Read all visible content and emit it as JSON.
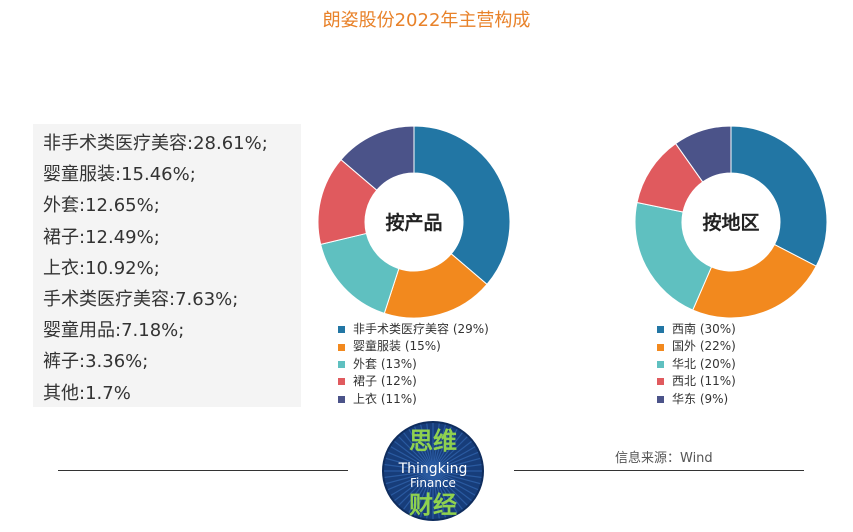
{
  "title": "朗姿股份2022年主营构成",
  "breakdown": [
    {
      "label": "非手术类医疗美容",
      "value": "28.61%;"
    },
    {
      "label": "婴童服装",
      "value": "15.46%;"
    },
    {
      "label": "外套",
      "value": "12.65%;"
    },
    {
      "label": "裙子",
      "value": "12.49%;"
    },
    {
      "label": "上衣",
      "value": "10.92%;"
    },
    {
      "label": "手术类医疗美容",
      "value": "7.63%;"
    },
    {
      "label": "婴童用品",
      "value": "7.18%;"
    },
    {
      "label": "裤子",
      "value": "3.36%;"
    },
    {
      "label": "其他",
      "value": "1.7%"
    }
  ],
  "chart_data": [
    {
      "type": "pie",
      "title": "按产品",
      "categories": [
        "非手术类医疗美容",
        "婴童服装",
        "外套",
        "裙子",
        "上衣"
      ],
      "values": [
        29,
        15,
        13,
        12,
        11
      ],
      "value_unit": "%",
      "colors": [
        "#2276a4",
        "#f2891e",
        "#5fc0c0",
        "#e05a5e",
        "#4b5389"
      ],
      "legend_labels": [
        "非手术类医疗美容 (29%)",
        "婴童服装 (15%)",
        "外套 (13%)",
        "裙子 (12%)",
        "上衣 (11%)"
      ],
      "legend_position": "bottom"
    },
    {
      "type": "pie",
      "title": "按地区",
      "categories": [
        "西南",
        "国外",
        "华北",
        "西北",
        "华东"
      ],
      "values": [
        30,
        22,
        20,
        11,
        9
      ],
      "value_unit": "%",
      "colors": [
        "#2276a4",
        "#f2891e",
        "#5fc0c0",
        "#e05a5e",
        "#4b5389"
      ],
      "legend_labels": [
        "西南 (30%)",
        "国外 (22%)",
        "华北 (20%)",
        "西北 (11%)",
        "华东 (9%)"
      ],
      "legend_position": "bottom"
    }
  ],
  "source": "信息来源：Wind",
  "logo": {
    "top": "思维",
    "middle1": "Thingking",
    "middle2": "Finance",
    "bottom": "财经"
  },
  "colors": {
    "title": "#e8822a",
    "logo_bg": "#173d7a",
    "logo_text": "#8fd14f"
  }
}
